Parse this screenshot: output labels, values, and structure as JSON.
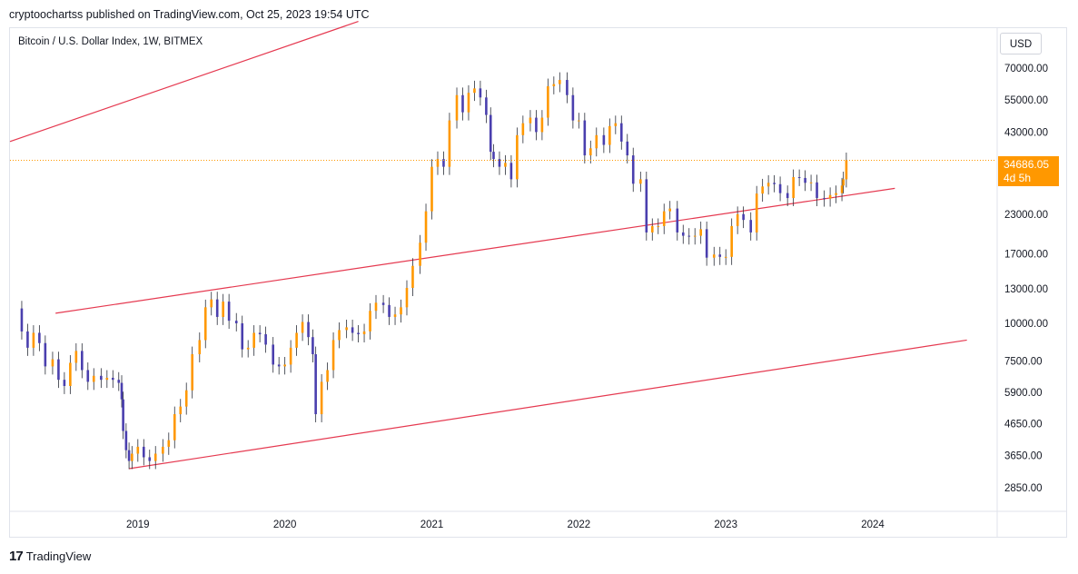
{
  "header": {
    "published": "cryptoochartss published on TradingView.com, Oct 25, 2023 19:54 UTC"
  },
  "symbol": {
    "title": "Bitcoin / U.S. Dollar Index, 1W, BITMEX"
  },
  "currency": "USD",
  "last_price": {
    "value": "34686.05",
    "countdown": "4d 5h"
  },
  "footer": {
    "brand": "TradingView"
  },
  "colors": {
    "up": "#ff9800",
    "down": "#4a3fae",
    "channel": "#e53950",
    "price_line": "#ff9800"
  },
  "chart_data": {
    "type": "candlestick",
    "title": "Bitcoin / U.S. Dollar Index, 1W, BITMEX",
    "y_scale": "log",
    "y_ticks": [
      70000,
      55000,
      43000,
      34686.05,
      23000,
      17000,
      13000,
      10000,
      7500,
      5900,
      4650,
      3650,
      2850
    ],
    "y_tick_labels": [
      "70000.00",
      "55000.00",
      "43000.00",
      "",
      "23000.00",
      "17000.00",
      "13000.00",
      "10000.00",
      "7500.00",
      "5900.00",
      "4650.00",
      "3650.00",
      "2850.00"
    ],
    "x_ticks": [
      2019,
      2020,
      2021,
      2022,
      2023,
      2024
    ],
    "x_tick_labels": [
      "2019",
      "2020",
      "2021",
      "2022",
      "2023",
      "2024"
    ],
    "ylim": [
      2400,
      95000
    ],
    "xlim": [
      2018.13,
      2024.84
    ],
    "last_price": 34686.05,
    "closes": [
      [
        2018.17,
        11200
      ],
      [
        2018.21,
        9400
      ],
      [
        2018.25,
        8300
      ],
      [
        2018.29,
        9300
      ],
      [
        2018.33,
        8600
      ],
      [
        2018.37,
        7200
      ],
      [
        2018.42,
        7600
      ],
      [
        2018.46,
        6500
      ],
      [
        2018.5,
        6200
      ],
      [
        2018.54,
        7400
      ],
      [
        2018.58,
        8100
      ],
      [
        2018.62,
        7000
      ],
      [
        2018.66,
        6400
      ],
      [
        2018.7,
        6700
      ],
      [
        2018.75,
        6500
      ],
      [
        2018.79,
        6600
      ],
      [
        2018.83,
        6500
      ],
      [
        2018.87,
        6350
      ],
      [
        2018.89,
        5600
      ],
      [
        2018.9,
        4400
      ],
      [
        2018.92,
        3800
      ],
      [
        2018.94,
        3500
      ],
      [
        2018.96,
        3700
      ],
      [
        2019.0,
        3900
      ],
      [
        2019.04,
        3600
      ],
      [
        2019.08,
        3500
      ],
      [
        2019.12,
        3700
      ],
      [
        2019.17,
        3900
      ],
      [
        2019.21,
        4100
      ],
      [
        2019.25,
        5000
      ],
      [
        2019.29,
        5300
      ],
      [
        2019.33,
        6000
      ],
      [
        2019.37,
        7900
      ],
      [
        2019.42,
        8800
      ],
      [
        2019.46,
        11300
      ],
      [
        2019.5,
        12000
      ],
      [
        2019.54,
        10500
      ],
      [
        2019.58,
        11800
      ],
      [
        2019.62,
        10200
      ],
      [
        2019.67,
        10000
      ],
      [
        2019.71,
        8200
      ],
      [
        2019.75,
        8300
      ],
      [
        2019.79,
        9300
      ],
      [
        2019.83,
        9200
      ],
      [
        2019.87,
        8500
      ],
      [
        2019.92,
        7300
      ],
      [
        2019.96,
        7200
      ],
      [
        2020.0,
        7300
      ],
      [
        2020.04,
        8300
      ],
      [
        2020.08,
        9300
      ],
      [
        2020.12,
        10100
      ],
      [
        2020.16,
        9000
      ],
      [
        2020.19,
        7900
      ],
      [
        2020.21,
        5000
      ],
      [
        2020.25,
        6400
      ],
      [
        2020.29,
        7000
      ],
      [
        2020.33,
        8800
      ],
      [
        2020.37,
        9500
      ],
      [
        2020.42,
        9700
      ],
      [
        2020.46,
        9300
      ],
      [
        2020.5,
        9200
      ],
      [
        2020.54,
        9400
      ],
      [
        2020.58,
        11000
      ],
      [
        2020.62,
        11700
      ],
      [
        2020.67,
        11500
      ],
      [
        2020.71,
        10500
      ],
      [
        2020.75,
        10700
      ],
      [
        2020.79,
        11300
      ],
      [
        2020.83,
        13100
      ],
      [
        2020.87,
        15500
      ],
      [
        2020.92,
        18500
      ],
      [
        2020.96,
        23500
      ],
      [
        2021.0,
        33000
      ],
      [
        2021.04,
        35000
      ],
      [
        2021.08,
        33000
      ],
      [
        2021.12,
        47000
      ],
      [
        2021.17,
        57000
      ],
      [
        2021.21,
        50000
      ],
      [
        2021.25,
        58000
      ],
      [
        2021.29,
        60000
      ],
      [
        2021.33,
        56000
      ],
      [
        2021.37,
        49000
      ],
      [
        2021.4,
        37000
      ],
      [
        2021.42,
        35000
      ],
      [
        2021.46,
        33000
      ],
      [
        2021.5,
        34000
      ],
      [
        2021.54,
        30000
      ],
      [
        2021.58,
        42000
      ],
      [
        2021.62,
        46000
      ],
      [
        2021.67,
        48000
      ],
      [
        2021.71,
        43000
      ],
      [
        2021.75,
        48000
      ],
      [
        2021.79,
        61000
      ],
      [
        2021.83,
        62000
      ],
      [
        2021.87,
        64000
      ],
      [
        2021.92,
        57000
      ],
      [
        2021.96,
        47000
      ],
      [
        2022.0,
        47000
      ],
      [
        2022.04,
        36000
      ],
      [
        2022.08,
        38000
      ],
      [
        2022.12,
        42000
      ],
      [
        2022.17,
        39000
      ],
      [
        2022.21,
        45000
      ],
      [
        2022.25,
        46000
      ],
      [
        2022.29,
        40000
      ],
      [
        2022.33,
        36000
      ],
      [
        2022.37,
        29000
      ],
      [
        2022.42,
        30000
      ],
      [
        2022.46,
        20000
      ],
      [
        2022.5,
        21000
      ],
      [
        2022.54,
        21000
      ],
      [
        2022.58,
        23500
      ],
      [
        2022.62,
        24000
      ],
      [
        2022.67,
        20000
      ],
      [
        2022.71,
        19500
      ],
      [
        2022.75,
        19400
      ],
      [
        2022.79,
        19500
      ],
      [
        2022.83,
        20500
      ],
      [
        2022.87,
        16500
      ],
      [
        2022.92,
        16900
      ],
      [
        2022.96,
        16600
      ],
      [
        2023.0,
        16600
      ],
      [
        2023.04,
        21000
      ],
      [
        2023.08,
        23000
      ],
      [
        2023.12,
        22000
      ],
      [
        2023.17,
        20000
      ],
      [
        2023.21,
        26900
      ],
      [
        2023.25,
        28400
      ],
      [
        2023.29,
        29200
      ],
      [
        2023.33,
        28900
      ],
      [
        2023.37,
        27000
      ],
      [
        2023.42,
        26000
      ],
      [
        2023.46,
        30500
      ],
      [
        2023.5,
        30300
      ],
      [
        2023.54,
        29200
      ],
      [
        2023.58,
        29300
      ],
      [
        2023.62,
        26000
      ],
      [
        2023.67,
        25900
      ],
      [
        2023.71,
        26600
      ],
      [
        2023.75,
        27000
      ],
      [
        2023.79,
        28600
      ],
      [
        2023.8,
        30000
      ],
      [
        2023.82,
        34686
      ]
    ],
    "channel_lines": [
      {
        "name": "upper",
        "p1": [
          2018.13,
          40000
        ],
        "p2": [
          2020.5,
          100000
        ]
      },
      {
        "name": "middle",
        "p1": [
          2018.44,
          10800
        ],
        "p2": [
          2024.15,
          28000
        ]
      },
      {
        "name": "lower",
        "p1": [
          2018.94,
          3300
        ],
        "p2": [
          2024.64,
          8800
        ]
      }
    ]
  }
}
